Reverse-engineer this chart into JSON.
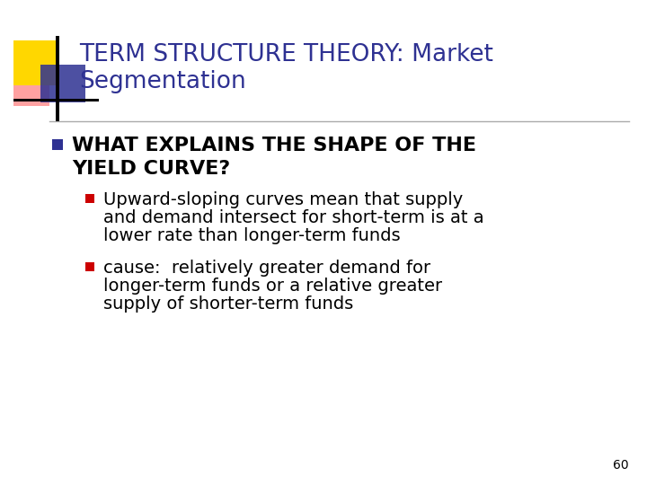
{
  "title_line1": "TERM STRUCTURE THEORY: Market",
  "title_line2": "Segmentation",
  "title_color": "#2E3192",
  "background_color": "#FFFFFF",
  "bullet1_line1": "WHAT EXPLAINS THE SHAPE OF THE",
  "bullet1_line2": "YIELD CURVE?",
  "bullet1_color": "#000000",
  "sub1_line1": "Upward-sloping curves mean that supply",
  "sub1_line2": "and demand intersect for short-term is at a",
  "sub1_line3": "lower rate than longer-term funds",
  "sub2_line1": "cause:  relatively greater demand for",
  "sub2_line2": "longer-term funds or a relative greater",
  "sub2_line3": "supply of shorter-term funds",
  "sub_bullet_color": "#000000",
  "bullet_square_color": "#2E3192",
  "sub_bullet_square_color": "#CC0000",
  "page_number": "60",
  "divider_color": "#AAAAAA",
  "logo_yellow_color": "#FFD700",
  "logo_red_color": "#FF5555",
  "logo_blue_color": "#2E3192",
  "logo_black_color": "#000000"
}
